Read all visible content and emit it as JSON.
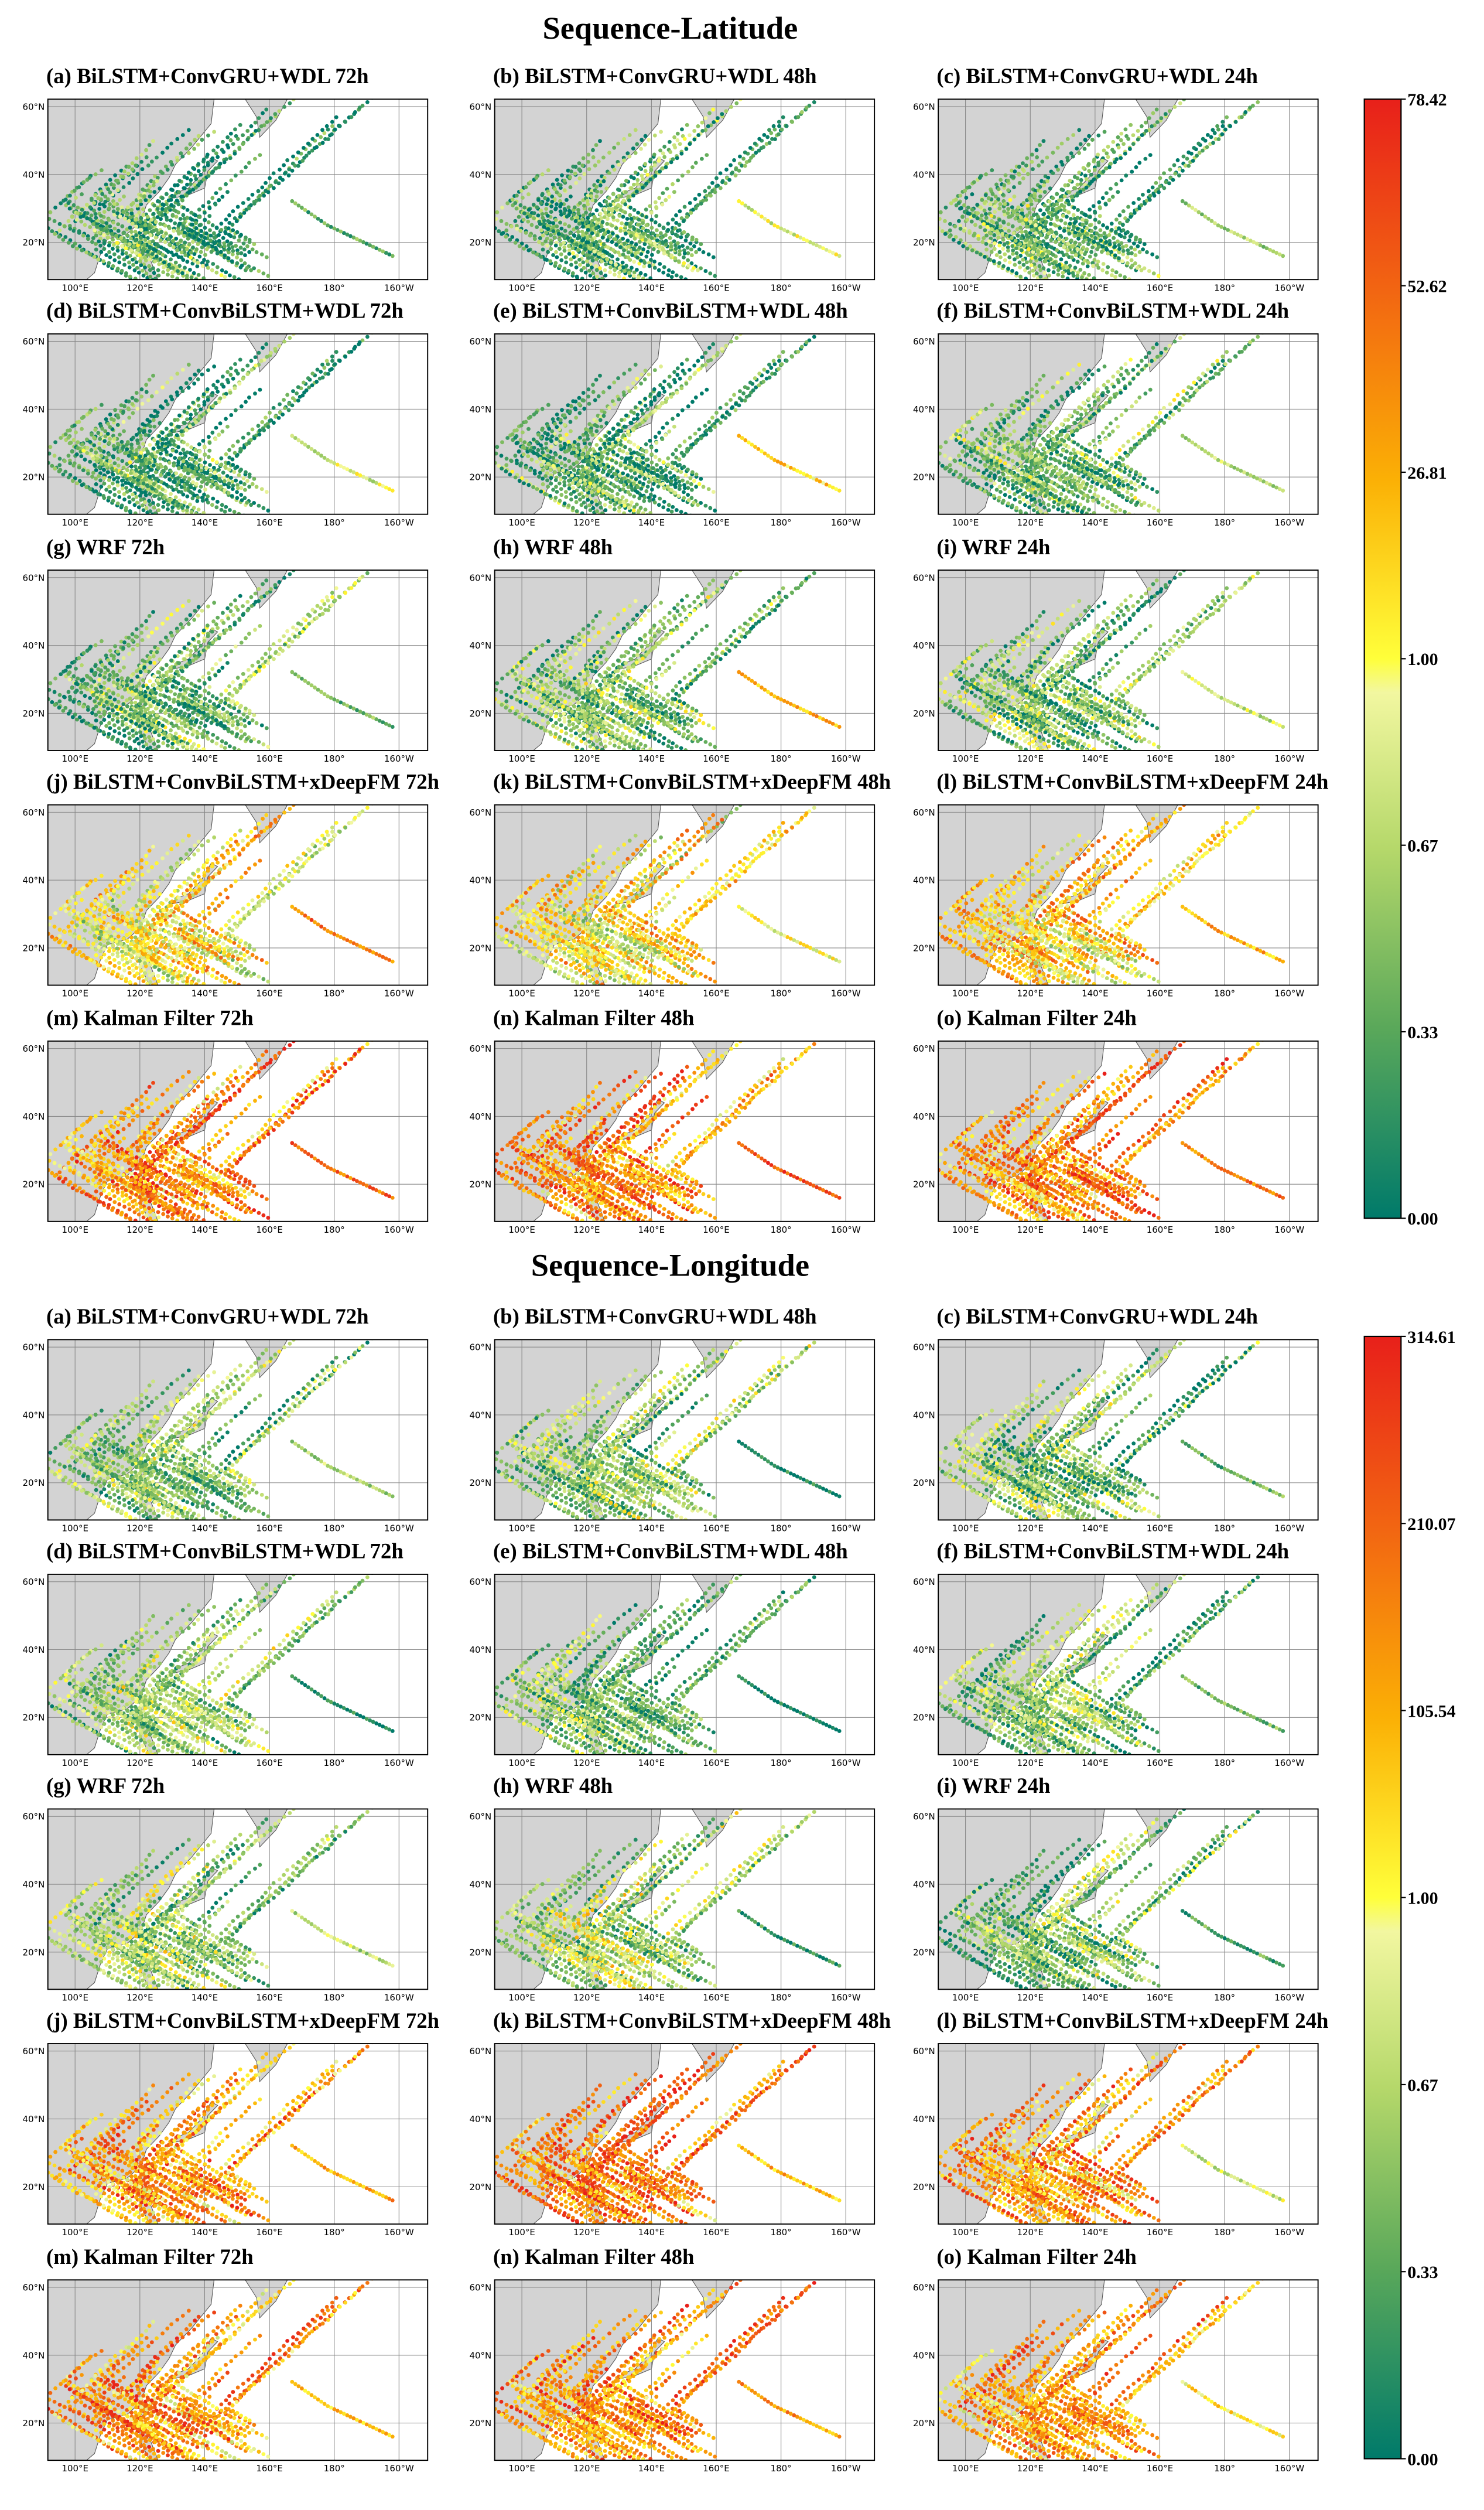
{
  "sections": [
    {
      "title": "Sequence-Latitude",
      "panels": [
        "(a) BiLSTM+ConvGRU+WDL 72h",
        "(b) BiLSTM+ConvGRU+WDL 48h",
        "(c) BiLSTM+ConvGRU+WDL 24h",
        "(d) BiLSTM+ConvBiLSTM+WDL 72h",
        "(e) BiLSTM+ConvBiLSTM+WDL 48h",
        "(f) BiLSTM+ConvBiLSTM+WDL 24h",
        "(g) WRF 72h",
        "(h) WRF 48h",
        "(i) WRF 24h",
        "(j) BiLSTM+ConvBiLSTM+xDeepFM 72h",
        "(k) BiLSTM+ConvBiLSTM+xDeepFM 48h",
        "(l) BiLSTM+ConvBiLSTM+xDeepFM 24h",
        "(m) Kalman Filter 72h",
        "(n) Kalman Filter 48h",
        "(o) Kalman Filter 24h"
      ],
      "colorbar_ticks": [
        "78.42",
        "52.62",
        "26.81",
        "1.00",
        "0.67",
        "0.33",
        "0.00"
      ]
    },
    {
      "title": "Sequence-Longitude",
      "panels": [
        "(a) BiLSTM+ConvGRU+WDL 72h",
        "(b) BiLSTM+ConvGRU+WDL 48h",
        "(c) BiLSTM+ConvGRU+WDL 24h",
        "(d) BiLSTM+ConvBiLSTM+WDL 72h",
        "(e) BiLSTM+ConvBiLSTM+WDL 48h",
        "(f) BiLSTM+ConvBiLSTM+WDL 24h",
        "(g) WRF 72h",
        "(h) WRF 48h",
        "(i) WRF 24h",
        "(j) BiLSTM+ConvBiLSTM+xDeepFM 72h",
        "(k) BiLSTM+ConvBiLSTM+xDeepFM 48h",
        "(l) BiLSTM+ConvBiLSTM+xDeepFM 24h",
        "(m) Kalman Filter 72h",
        "(n) Kalman Filter 48h",
        "(o) Kalman Filter 24h"
      ],
      "colorbar_ticks": [
        "314.61",
        "210.07",
        "105.54",
        "1.00",
        "0.67",
        "0.33",
        "0.00"
      ]
    }
  ],
  "map_axes": {
    "lat_labels": [
      "60°N",
      "40°N",
      "20°N"
    ],
    "lon_labels": [
      "100°E",
      "120°E",
      "140°E",
      "160°E",
      "180°",
      "160°W"
    ]
  }
}
